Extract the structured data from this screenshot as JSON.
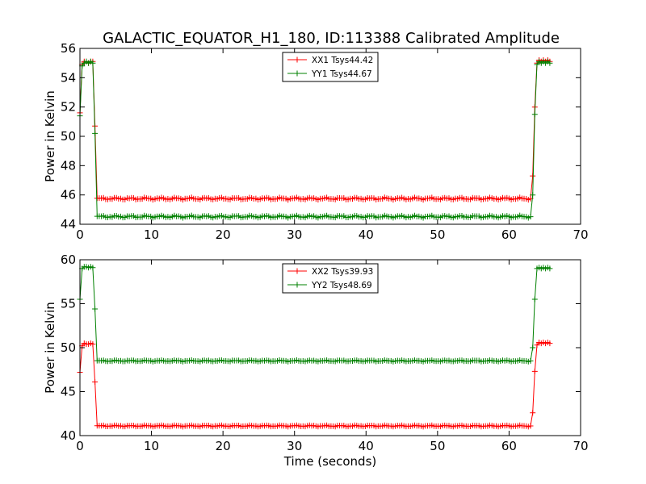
{
  "chart_data": [
    {
      "type": "line",
      "title": "GALACTIC_EQUATOR_H1_180, ID:113388 Calibrated Amplitude",
      "xlabel": "",
      "ylabel": "Power in Kelvin",
      "xlim": [
        0,
        70
      ],
      "ylim": [
        44,
        56
      ],
      "xticks": [
        "0",
        "10",
        "20",
        "30",
        "40",
        "50",
        "60",
        "70"
      ],
      "yticks": [
        "44",
        "46",
        "48",
        "50",
        "52",
        "54",
        "56"
      ],
      "grid": false,
      "legend_position": "top-center",
      "series": [
        {
          "name": "XX1 Tsys44.42",
          "color": "#ff0000",
          "marker": "plus",
          "segments": [
            {
              "x": [
                0,
                0.3,
                0.6,
                0.9,
                1.2,
                1.5,
                1.8,
                2.1
              ],
              "y": [
                51.6,
                54.9,
                55.1,
                55.1,
                55.0,
                55.1,
                55.1,
                50.7
              ]
            },
            {
              "x0": 2.4,
              "x1": 63.0,
              "dx": 0.3,
              "value": 45.75,
              "amp": 0.08
            },
            {
              "x": [
                63.3,
                63.6,
                63.9,
                64.2,
                64.5,
                64.8,
                65.1,
                65.4,
                65.7
              ],
              "y": [
                47.3,
                52.0,
                55.0,
                55.2,
                55.1,
                55.2,
                55.1,
                55.2,
                55.1
              ]
            }
          ]
        },
        {
          "name": "YY1 Tsys44.67",
          "color": "#008000",
          "marker": "plus",
          "segments": [
            {
              "x": [
                0,
                0.3,
                0.6,
                0.9,
                1.2,
                1.5,
                1.8,
                2.1
              ],
              "y": [
                51.4,
                54.8,
                55.0,
                55.1,
                55.0,
                55.1,
                55.0,
                50.2
              ]
            },
            {
              "x0": 2.4,
              "x1": 63.0,
              "dx": 0.3,
              "value": 44.52,
              "amp": 0.08
            },
            {
              "x": [
                63.3,
                63.6,
                63.9,
                64.2,
                64.5,
                64.8,
                65.1,
                65.4,
                65.7
              ],
              "y": [
                46.0,
                51.5,
                54.9,
                55.1,
                55.0,
                55.1,
                55.0,
                55.1,
                55.0
              ]
            }
          ]
        }
      ]
    },
    {
      "type": "line",
      "title": "",
      "xlabel": "Time (seconds)",
      "ylabel": "Power in Kelvin",
      "xlim": [
        0,
        70
      ],
      "ylim": [
        40,
        60
      ],
      "xticks": [
        "0",
        "10",
        "20",
        "30",
        "40",
        "50",
        "60",
        "70"
      ],
      "yticks": [
        "40",
        "45",
        "50",
        "55",
        "60"
      ],
      "grid": false,
      "legend_position": "top-center",
      "series": [
        {
          "name": "XX2 Tsys39.93",
          "color": "#ff0000",
          "marker": "plus",
          "segments": [
            {
              "x": [
                0,
                0.3,
                0.6,
                0.9,
                1.2,
                1.5,
                1.8,
                2.1
              ],
              "y": [
                47.2,
                50.2,
                50.5,
                50.4,
                50.4,
                50.5,
                50.4,
                46.1
              ]
            },
            {
              "x0": 2.4,
              "x1": 63.0,
              "dx": 0.3,
              "value": 41.1,
              "amp": 0.08
            },
            {
              "x": [
                63.3,
                63.6,
                63.9,
                64.2,
                64.5,
                64.8,
                65.1,
                65.4,
                65.7
              ],
              "y": [
                42.6,
                47.3,
                50.3,
                50.6,
                50.5,
                50.6,
                50.5,
                50.6,
                50.5
              ]
            }
          ]
        },
        {
          "name": "YY2 Tsys48.69",
          "color": "#008000",
          "marker": "plus",
          "segments": [
            {
              "x": [
                0,
                0.3,
                0.6,
                0.9,
                1.2,
                1.5,
                1.8,
                2.1
              ],
              "y": [
                55.5,
                59.0,
                59.2,
                59.2,
                59.1,
                59.2,
                59.1,
                54.4
              ]
            },
            {
              "x0": 2.4,
              "x1": 63.0,
              "dx": 0.3,
              "value": 48.5,
              "amp": 0.08
            },
            {
              "x": [
                63.3,
                63.6,
                63.9,
                64.2,
                64.5,
                64.8,
                65.1,
                65.4,
                65.7
              ],
              "y": [
                50.0,
                55.5,
                59.0,
                59.1,
                59.0,
                59.1,
                59.0,
                59.1,
                59.0
              ]
            }
          ]
        }
      ]
    }
  ]
}
